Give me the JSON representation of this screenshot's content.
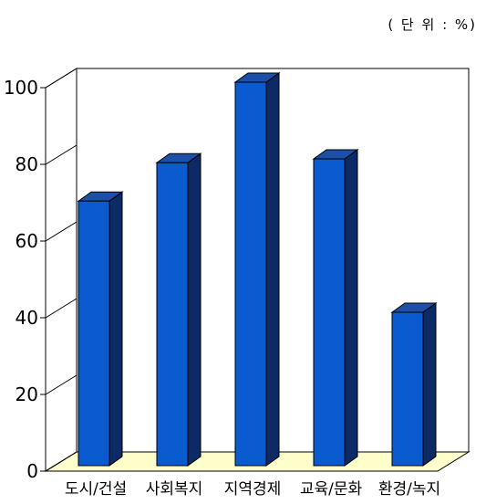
{
  "unit_note": "( 단 위 : %)",
  "colors": {
    "bar_front": "#0A5BD0",
    "bar_side": "#0B2A66",
    "bar_top": "#1E4FA8",
    "floor": "#FFFFCC",
    "grid_line": "#000000"
  },
  "chart_data": {
    "type": "bar",
    "style": "3d-column",
    "title": "",
    "xlabel": "",
    "ylabel": "",
    "ylim": [
      0,
      100
    ],
    "yticks": [
      0,
      20,
      40,
      60,
      80,
      100
    ],
    "categories": [
      "도시/건설",
      "사회복지",
      "지역경제",
      "교육/문화",
      "환경/녹지"
    ],
    "values": [
      69,
      79,
      100,
      80,
      40
    ],
    "grid": false,
    "legend": "none"
  }
}
